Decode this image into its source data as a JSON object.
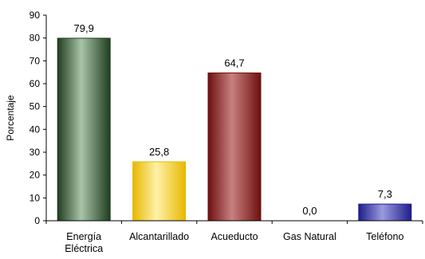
{
  "chart_data": {
    "type": "bar",
    "ylabel": "Porcentaje",
    "ylim": [
      0,
      90
    ],
    "ytick_step": 10,
    "yticks": [
      "0",
      "10",
      "20",
      "30",
      "40",
      "50",
      "60",
      "70",
      "80",
      "90"
    ],
    "categories": [
      [
        "Energía",
        "Eléctrica"
      ],
      [
        "Alcantarillado"
      ],
      [
        "Acueducto"
      ],
      [
        "Gas Natural"
      ],
      [
        "Teléfono"
      ]
    ],
    "values": [
      79.9,
      25.8,
      64.7,
      0.0,
      7.3
    ],
    "data_labels": [
      "79,9",
      "25,8",
      "64,7",
      "0,0",
      "7,3"
    ],
    "colors": [
      {
        "dark": "#1f3d1f",
        "mid": "#6f8f6f",
        "light": "#a9c4a9"
      },
      {
        "dark": "#e6b800",
        "mid": "#ffd23f",
        "light": "#fff1a8"
      },
      {
        "dark": "#6e0f0f",
        "mid": "#a84a4a",
        "light": "#c98080"
      },
      {
        "dark": "#808080",
        "mid": "#b0b0b0",
        "light": "#d8d8d8"
      },
      {
        "dark": "#1e1e8a",
        "mid": "#4a4ab8",
        "light": "#9a9ae0"
      }
    ],
    "grid": false
  }
}
